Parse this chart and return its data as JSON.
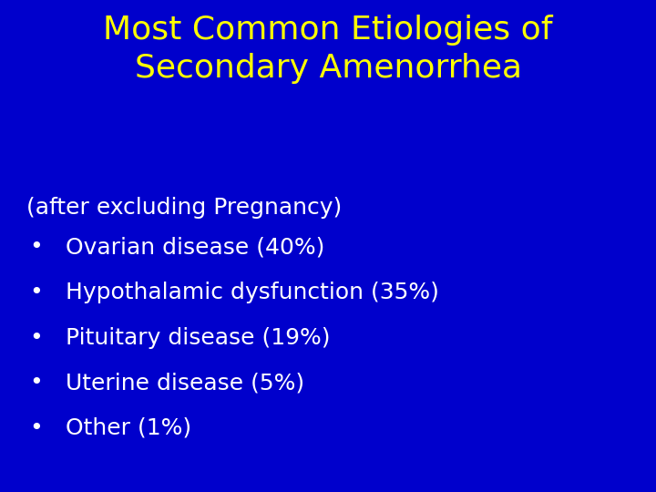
{
  "background_color": "#0000cc",
  "title_line1": "Most Common Etiologies of",
  "title_line2": "Secondary Amenorrhea",
  "title_color": "#ffff00",
  "title_fontsize": 26,
  "title_fontweight": "normal",
  "subtitle": "(after excluding Pregnancy)",
  "subtitle_color": "#ffffff",
  "subtitle_fontsize": 18,
  "bullet_items": [
    "Ovarian disease (40%)",
    "Hypothalamic dysfunction (35%)",
    "Pituitary disease (19%)",
    "Uterine disease (5%)",
    "Other (1%)"
  ],
  "bullet_color": "#ffffff",
  "bullet_fontsize": 18,
  "bullet_marker": "•"
}
